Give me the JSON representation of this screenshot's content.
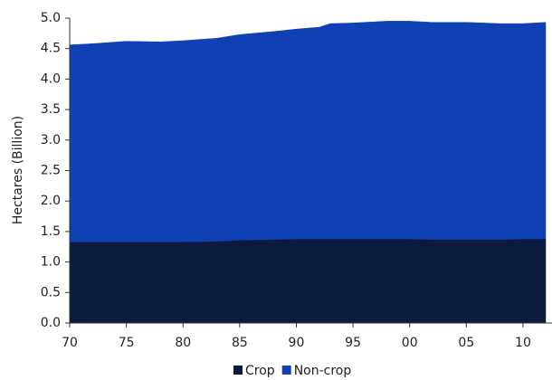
{
  "chart_data": {
    "type": "stacked_area",
    "y_label": "Hectares (Billion)",
    "x": [
      1970,
      1972,
      1975,
      1978,
      1980,
      1983,
      1985,
      1988,
      1990,
      1992,
      1993,
      1995,
      1998,
      2000,
      2002,
      2005,
      2008,
      2010,
      2012
    ],
    "series": [
      {
        "name": "Crop",
        "color": "#0c1a3e",
        "values": [
          1.33,
          1.33,
          1.33,
          1.33,
          1.33,
          1.34,
          1.36,
          1.37,
          1.38,
          1.38,
          1.38,
          1.38,
          1.38,
          1.38,
          1.37,
          1.37,
          1.37,
          1.38,
          1.38
        ]
      },
      {
        "name": "Non-crop",
        "color": "#0f40b4",
        "values": [
          3.23,
          3.25,
          3.29,
          3.28,
          3.3,
          3.33,
          3.37,
          3.41,
          3.44,
          3.47,
          3.53,
          3.54,
          3.57,
          3.57,
          3.56,
          3.56,
          3.54,
          3.53,
          3.55
        ]
      }
    ],
    "xlim": [
      1970,
      2012
    ],
    "xticks": [
      {
        "value": 1970,
        "label": "70"
      },
      {
        "value": 1975,
        "label": "75"
      },
      {
        "value": 1980,
        "label": "80"
      },
      {
        "value": 1985,
        "label": "85"
      },
      {
        "value": 1990,
        "label": "90"
      },
      {
        "value": 1995,
        "label": "95"
      },
      {
        "value": 2000,
        "label": "00"
      },
      {
        "value": 2005,
        "label": "05"
      },
      {
        "value": 2010,
        "label": "10"
      }
    ],
    "ylim": [
      0,
      5
    ],
    "yticks": [
      {
        "value": 0,
        "label": "0.0"
      },
      0.5,
      {
        "value": 1,
        "label": "1.0"
      },
      1.5,
      {
        "value": 2,
        "label": "2.0"
      },
      2.5,
      {
        "value": 3,
        "label": "3.0"
      },
      3.5,
      {
        "value": 4,
        "label": "4.0"
      },
      4.5,
      {
        "value": 5,
        "label": "5.0"
      }
    ],
    "legend": "bottom"
  }
}
